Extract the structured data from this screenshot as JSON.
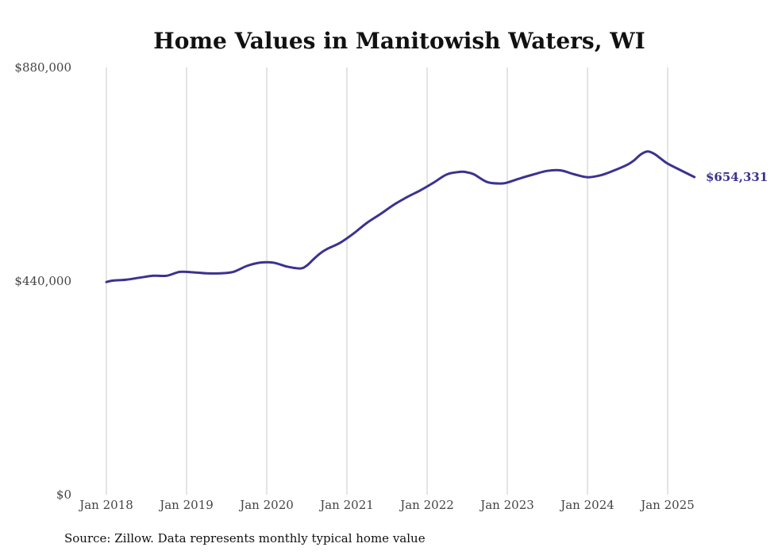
{
  "chart_data": {
    "type": "line",
    "title": "Home Values in Manitowish Waters, WI",
    "source": "Source: Zillow. Data represents monthly typical home value",
    "line_color": "#3a3391",
    "grid": "vertical",
    "ylim": [
      0,
      880000
    ],
    "y_ticks": [
      {
        "value": 0,
        "label": "$0"
      },
      {
        "value": 440000,
        "label": "$440,000"
      },
      {
        "value": 880000,
        "label": "$880,000"
      }
    ],
    "x_ticks": [
      {
        "value": "2018-01",
        "label": "Jan 2018"
      },
      {
        "value": "2019-01",
        "label": "Jan 2019"
      },
      {
        "value": "2020-01",
        "label": "Jan 2020"
      },
      {
        "value": "2021-01",
        "label": "Jan 2021"
      },
      {
        "value": "2022-01",
        "label": "Jan 2022"
      },
      {
        "value": "2023-01",
        "label": "Jan 2023"
      },
      {
        "value": "2024-01",
        "label": "Jan 2024"
      },
      {
        "value": "2025-01",
        "label": "Jan 2025"
      }
    ],
    "end_label": "$654,331",
    "series": [
      {
        "x": [
          "2018-01",
          "2018-02",
          "2018-04",
          "2018-06",
          "2018-08",
          "2018-10",
          "2018-12",
          "2019-02",
          "2019-04",
          "2019-06",
          "2019-08",
          "2019-10",
          "2019-12",
          "2020-02",
          "2020-04",
          "2020-06",
          "2020-07",
          "2020-08",
          "2020-09",
          "2020-10",
          "2020-12",
          "2021-02",
          "2021-04",
          "2021-06",
          "2021-08",
          "2021-10",
          "2021-12",
          "2022-02",
          "2022-04",
          "2022-06",
          "2022-07",
          "2022-08",
          "2022-10",
          "2022-12",
          "2023-01",
          "2023-03",
          "2023-05",
          "2023-07",
          "2023-09",
          "2023-11",
          "2024-01",
          "2024-03",
          "2024-05",
          "2024-07",
          "2024-08",
          "2024-09",
          "2024-10",
          "2024-11",
          "2024-12",
          "2025-01",
          "2025-03",
          "2025-05"
        ],
        "y": [
          438000,
          441000,
          443000,
          447000,
          451000,
          451000,
          459000,
          458000,
          456000,
          456000,
          459000,
          471000,
          478000,
          478000,
          470000,
          466000,
          472000,
          485000,
          497000,
          506000,
          519000,
          538000,
          560000,
          578000,
          597000,
          613000,
          627000,
          643000,
          660000,
          665000,
          664000,
          660000,
          644000,
          641000,
          643000,
          652000,
          660000,
          667000,
          668000,
          660000,
          654000,
          658000,
          668000,
          680000,
          689000,
          701000,
          707000,
          702000,
          692000,
          682000,
          668000,
          654331
        ]
      }
    ]
  }
}
